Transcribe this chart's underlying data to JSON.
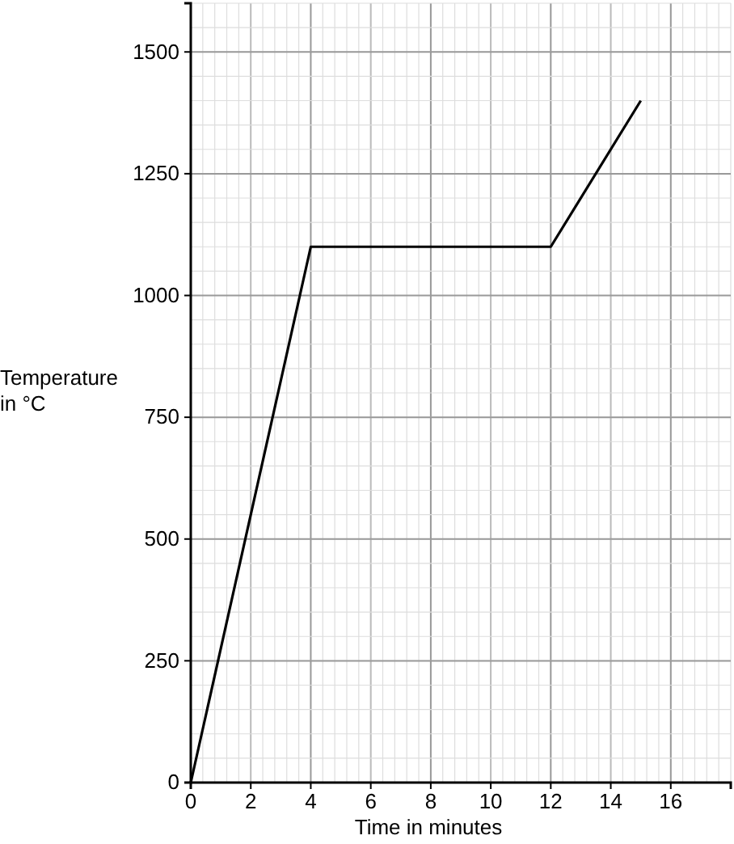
{
  "chart_data": {
    "type": "line",
    "xlabel": "Time in minutes",
    "ylabel": "Temperature\nin °C",
    "x": [
      0,
      4,
      12,
      15
    ],
    "series": [
      {
        "color": "#000000",
        "values": [
          0,
          1100,
          1100,
          1400
        ]
      }
    ],
    "xlim": [
      0,
      18
    ],
    "ylim": [
      0,
      1600
    ],
    "xticks": [
      0,
      2,
      4,
      6,
      8,
      10,
      12,
      14,
      16
    ],
    "yticks": [
      0,
      250,
      500,
      750,
      1000,
      1250,
      1500
    ],
    "grid": true,
    "marker": "none",
    "line_style": "solid"
  }
}
